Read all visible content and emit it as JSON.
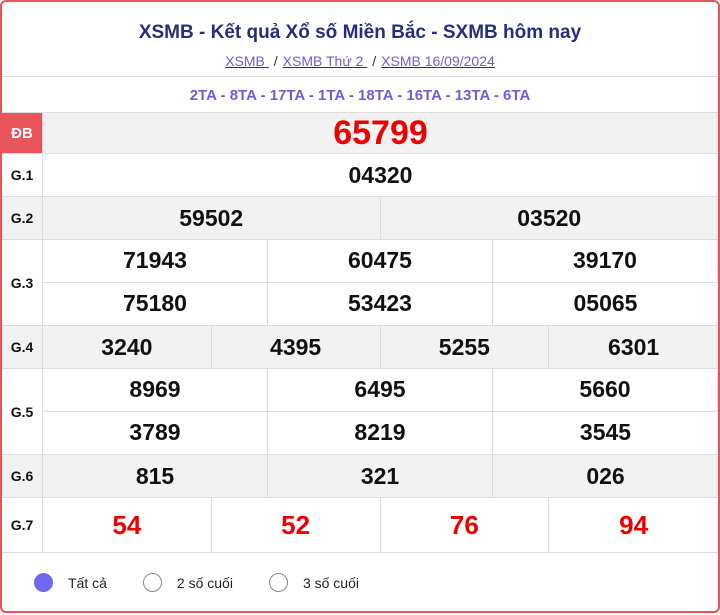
{
  "header": {
    "title": "XSMB - Kết quả Xổ số Miền Bắc - SXMB hôm nay",
    "breadcrumbs": [
      "XSMB ",
      "XSMB Thứ 2 ",
      "XSMB 16/09/2024"
    ],
    "separator": "/"
  },
  "codes": "2TA - 8TA - 17TA - 1TA - 18TA - 16TA - 13TA - 6TA",
  "prizes": {
    "db": {
      "label": "ĐB",
      "values": [
        "65799"
      ]
    },
    "g1": {
      "label": "G.1",
      "values": [
        "04320"
      ]
    },
    "g2": {
      "label": "G.2",
      "values": [
        "59502",
        "03520"
      ]
    },
    "g3": {
      "label": "G.3",
      "values": [
        "71943",
        "60475",
        "39170",
        "75180",
        "53423",
        "05065"
      ]
    },
    "g4": {
      "label": "G.4",
      "values": [
        "3240",
        "4395",
        "5255",
        "6301"
      ]
    },
    "g5": {
      "label": "G.5",
      "values": [
        "8969",
        "6495",
        "5660",
        "3789",
        "8219",
        "3545"
      ]
    },
    "g6": {
      "label": "G.6",
      "values": [
        "815",
        "321",
        "026"
      ]
    },
    "g7": {
      "label": "G.7",
      "values": [
        "54",
        "52",
        "76",
        "94"
      ]
    }
  },
  "filter": {
    "options": [
      "Tất cả",
      "2 số cuối",
      "3 số cuối"
    ],
    "selected": 0
  },
  "colors": {
    "accent": "#7068ee",
    "special": "#e00000",
    "border": "#e8545a",
    "title": "#23307a"
  }
}
